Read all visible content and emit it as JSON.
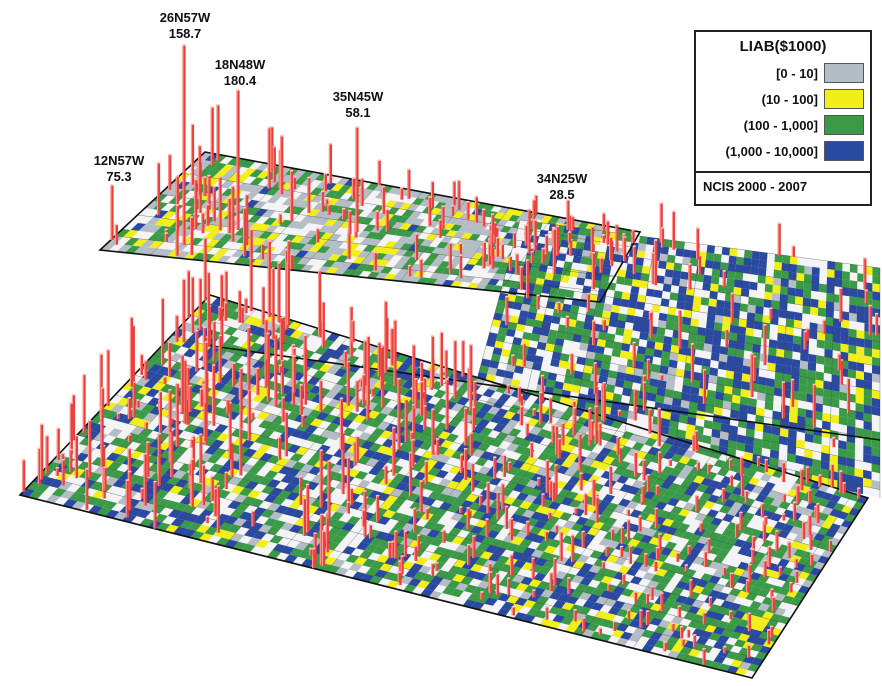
{
  "legend": {
    "title": "LIAB($1000)",
    "classes": [
      {
        "label": "[0 - 10]",
        "color": "#b4bcc6"
      },
      {
        "label": "(10 - 100]",
        "color": "#f2ee1a"
      },
      {
        "label": "(100 - 1,000]",
        "color": "#3a9a48"
      },
      {
        "label": "(1,000 - 10,000]",
        "color": "#2a49a0"
      }
    ],
    "source": "NCIS 2000 - 2007"
  },
  "callouts": [
    {
      "grid": "26N57W",
      "value": "158.7"
    },
    {
      "grid": "18N48W",
      "value": "180.4"
    },
    {
      "grid": "35N45W",
      "value": "58.1"
    },
    {
      "grid": "12N57W",
      "value": "75.3"
    },
    {
      "grid": "34N25W",
      "value": "28.5"
    }
  ],
  "colors": {
    "bar": "#e8403c",
    "bar_highlight": "#ff9a90",
    "grid_line": "#2a2a2a",
    "empty_cell": "#f4f4f6"
  }
}
